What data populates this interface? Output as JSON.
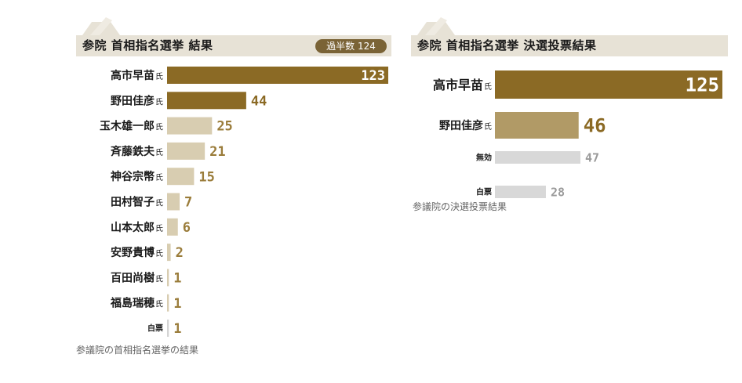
{
  "chart_data": [
    {
      "type": "bar",
      "title": "参院 首相指名選挙 結果",
      "badge": "過半数 124",
      "caption": "参議院の首相指名選挙の結果",
      "suffix": "氏",
      "categories": [
        "高市早苗",
        "野田佳彦",
        "玉木雄一郎",
        "斉藤鉄夫",
        "神谷宗幣",
        "田村智子",
        "山本太郎",
        "安野貴博",
        "百田尚樹",
        "福島瑞穂",
        "白票"
      ],
      "values": [
        123,
        44,
        25,
        21,
        15,
        7,
        6,
        2,
        1,
        1,
        1
      ],
      "value_labels": [
        "123",
        "44",
        "25",
        "21",
        "15",
        "7",
        "6",
        "2",
        "1",
        "1",
        "1"
      ],
      "has_suffix": [
        true,
        true,
        true,
        true,
        true,
        true,
        true,
        true,
        true,
        true,
        false
      ],
      "bar_colors": [
        "#8b6a25",
        "#8b6a25",
        "#d8cdb1",
        "#d8cdb1",
        "#d8cdb1",
        "#d8cdb1",
        "#d8cdb1",
        "#d8cdb1",
        "#d8cdb1",
        "#d8cdb1",
        "#d4d4d4"
      ],
      "value_colors": [
        "#ffffff",
        "#8b6a25",
        "#9a7c3a",
        "#9a7c3a",
        "#9a7c3a",
        "#9a7c3a",
        "#9a7c3a",
        "#9a7c3a",
        "#9a7c3a",
        "#9a7c3a",
        "#9a7c3a"
      ],
      "xlim": [
        0,
        123
      ]
    },
    {
      "type": "bar",
      "title": "参院 首相指名選挙 決選投票結果",
      "caption": "参議院の決選投票結果",
      "suffix": "氏",
      "categories": [
        "高市早苗",
        "野田佳彦",
        "無効",
        "白票"
      ],
      "values": [
        125,
        46,
        47,
        28
      ],
      "value_labels": [
        "125",
        "46",
        "47",
        "28"
      ],
      "has_suffix": [
        true,
        true,
        false,
        false
      ],
      "bar_colors": [
        "#8b6a25",
        "#b19a66",
        "#d8d8d8",
        "#d8d8d8"
      ],
      "value_colors": [
        "#ffffff",
        "#8b6a25",
        "#9a9a9a",
        "#9a9a9a"
      ],
      "xlim": [
        0,
        125
      ]
    }
  ]
}
